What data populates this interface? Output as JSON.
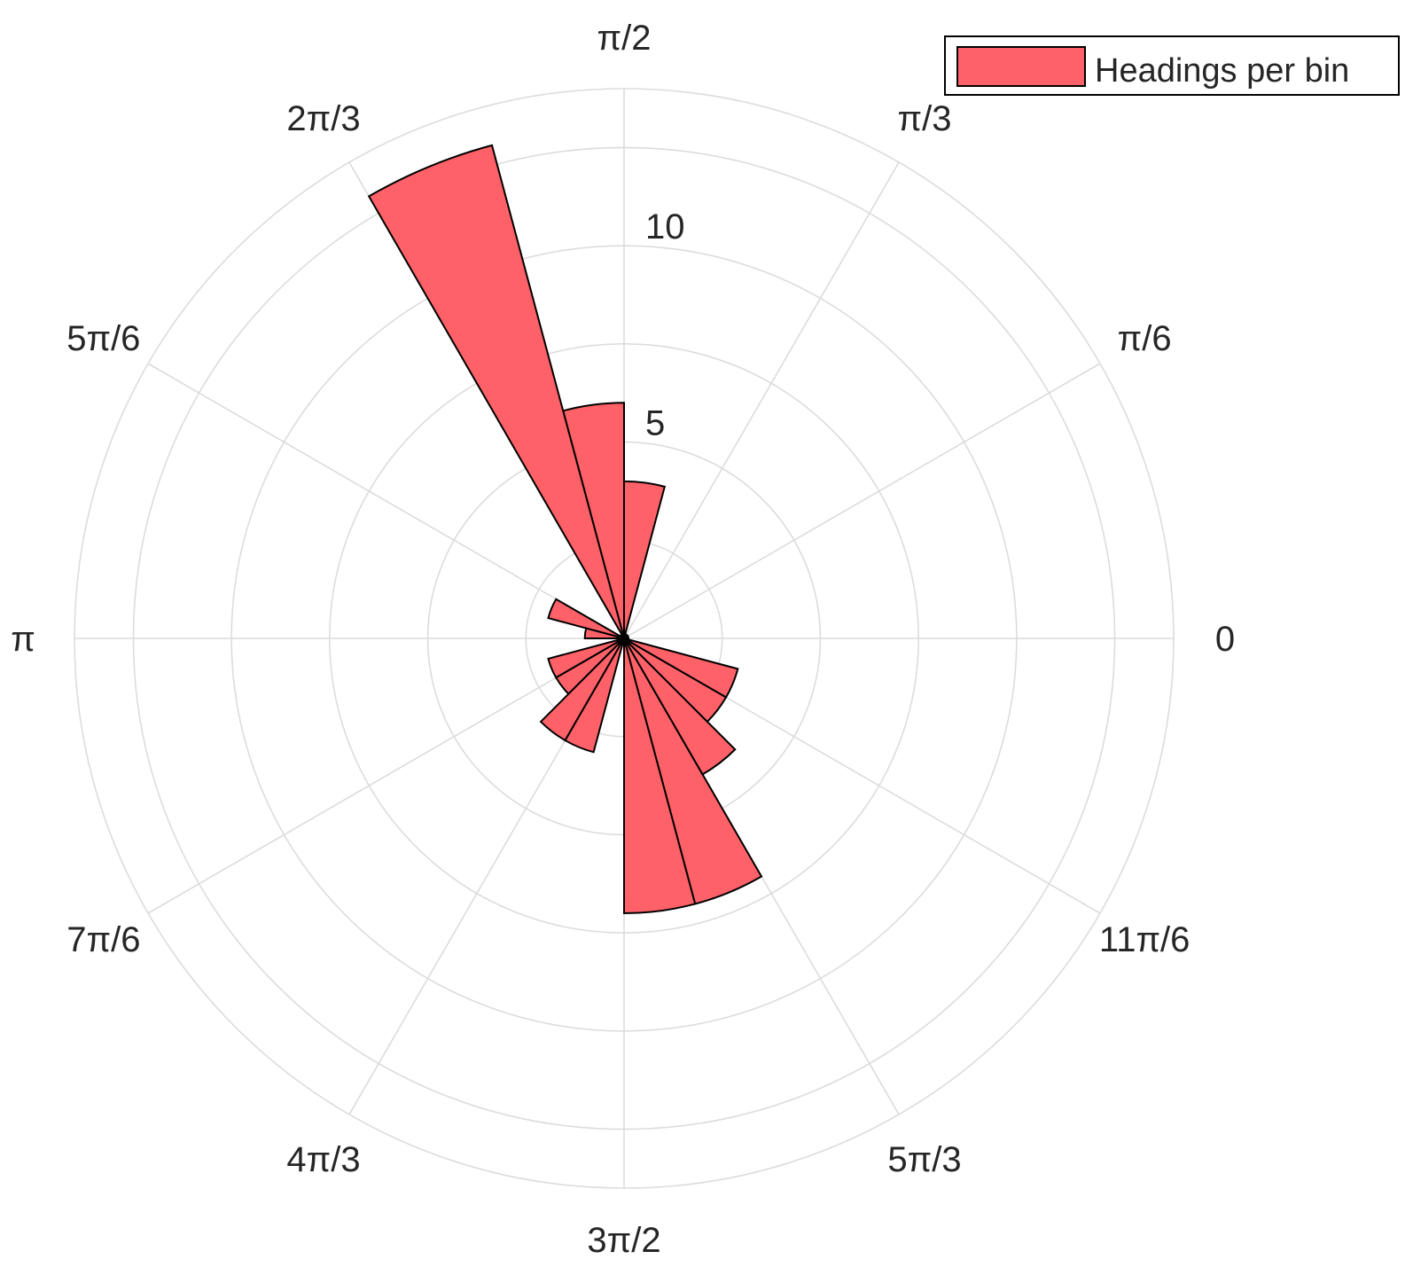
{
  "chart_data": {
    "type": "polar-histogram",
    "theta_unit": "radians",
    "bin_count": 24,
    "bin_width_rad": 0.2618,
    "bins_start_rad": [
      0,
      0.2618,
      0.5236,
      0.7854,
      1.0472,
      1.309,
      1.5708,
      1.8326,
      2.0944,
      2.3562,
      2.618,
      2.8798,
      3.1416,
      3.4034,
      3.6652,
      3.927,
      4.1888,
      4.4506,
      4.7124,
      4.9742,
      5.236,
      5.4978,
      5.7596,
      6.0214
    ],
    "values": [
      0,
      0,
      0,
      0,
      0,
      4,
      6,
      13,
      0,
      0,
      2,
      1,
      0,
      2,
      2,
      3,
      3,
      0,
      7,
      7,
      4,
      3,
      3,
      0
    ],
    "r_ticks": [
      "5",
      "10"
    ],
    "r_tick_values": [
      5,
      10
    ],
    "r_grid": [
      0,
      5,
      10,
      15,
      20,
      25,
      30
    ],
    "rlim": [
      0,
      14
    ],
    "theta_ticks": [
      {
        "label": "0",
        "angle": 0
      },
      {
        "label": "π/6",
        "angle": 0.5236
      },
      {
        "label": "π/3",
        "angle": 1.0472
      },
      {
        "label": "π/2",
        "angle": 1.5708
      },
      {
        "label": "2π/3",
        "angle": 2.0944
      },
      {
        "label": "5π/6",
        "angle": 2.618
      },
      {
        "label": "π",
        "angle": 3.1416
      },
      {
        "label": "7π/6",
        "angle": 3.6652
      },
      {
        "label": "4π/3",
        "angle": 4.1888
      },
      {
        "label": "3π/2",
        "angle": 4.7124
      },
      {
        "label": "5π/3",
        "angle": 5.236
      },
      {
        "label": "11π/6",
        "angle": 5.7596
      }
    ],
    "legend": {
      "entries": [
        "Headings per bin"
      ],
      "placement": "top-right"
    },
    "grid": true,
    "colors": {
      "bar_fill": "#ff6168",
      "bar_edge": "#000000",
      "grid": "#dcdcdc",
      "text": "#262626"
    }
  }
}
